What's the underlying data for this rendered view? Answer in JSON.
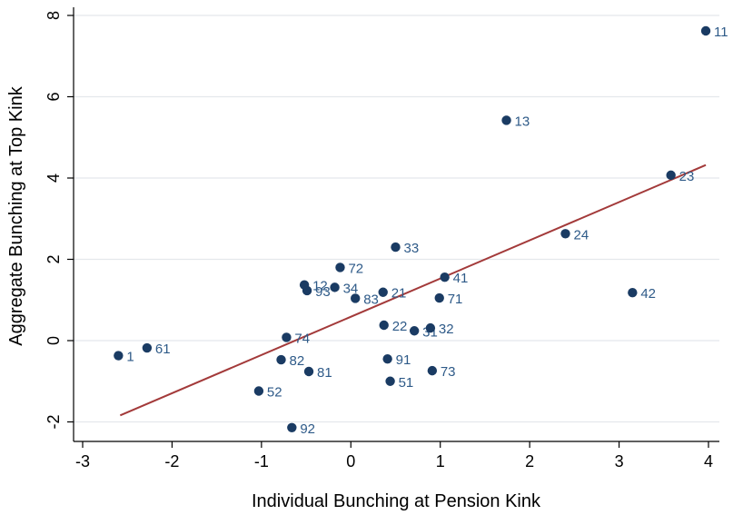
{
  "chart_data": {
    "type": "scatter",
    "xlabel": "Individual Bunching at Pension Kink",
    "ylabel": "Aggregate Bunching at Top Kink",
    "xlim": [
      -3.1,
      4.1
    ],
    "ylim": [
      -2.4,
      8.3
    ],
    "x_ticks": [
      "-3",
      "-2",
      "-1",
      "0",
      "1",
      "2",
      "3",
      "4"
    ],
    "y_ticks": [
      "-2",
      "0",
      "2",
      "4",
      "6",
      "8"
    ],
    "grid": true,
    "legend": "none",
    "colors": {
      "point": "#1a3b63",
      "label": "#2e5a88",
      "fit_line": "#a33a3a",
      "grid": "#e4e8ec"
    },
    "points": [
      {
        "label": "11",
        "x": 3.97,
        "y": 7.62
      },
      {
        "label": "13",
        "x": 1.74,
        "y": 5.42
      },
      {
        "label": "23",
        "x": 3.58,
        "y": 4.07
      },
      {
        "label": "24",
        "x": 2.4,
        "y": 2.63
      },
      {
        "label": "42",
        "x": 3.15,
        "y": 1.18
      },
      {
        "label": "33",
        "x": 0.5,
        "y": 2.3
      },
      {
        "label": "72",
        "x": -0.12,
        "y": 1.8
      },
      {
        "label": "41",
        "x": 1.05,
        "y": 1.56
      },
      {
        "label": "12",
        "x": -0.52,
        "y": 1.37
      },
      {
        "label": "34",
        "x": -0.18,
        "y": 1.31
      },
      {
        "label": "93",
        "x": -0.49,
        "y": 1.23
      },
      {
        "label": "21",
        "x": 0.36,
        "y": 1.19
      },
      {
        "label": "83",
        "x": 0.05,
        "y": 1.04
      },
      {
        "label": "71",
        "x": 0.99,
        "y": 1.05
      },
      {
        "label": "22",
        "x": 0.37,
        "y": 0.38
      },
      {
        "label": "31",
        "x": 0.71,
        "y": 0.24
      },
      {
        "label": "32",
        "x": 0.89,
        "y": 0.31
      },
      {
        "label": "74",
        "x": -0.72,
        "y": 0.08
      },
      {
        "label": "61",
        "x": -2.28,
        "y": -0.18
      },
      {
        "label": "1",
        "x": -2.6,
        "y": -0.37
      },
      {
        "label": "82",
        "x": -0.78,
        "y": -0.47
      },
      {
        "label": "91",
        "x": 0.41,
        "y": -0.45
      },
      {
        "label": "81",
        "x": -0.47,
        "y": -0.76
      },
      {
        "label": "73",
        "x": 0.91,
        "y": -0.74
      },
      {
        "label": "51",
        "x": 0.44,
        "y": -1.0
      },
      {
        "label": "52",
        "x": -1.03,
        "y": -1.24
      },
      {
        "label": "92",
        "x": -0.66,
        "y": -2.14
      }
    ],
    "fit_line": {
      "x": [
        -2.58,
        3.97
      ],
      "y": [
        -1.84,
        4.32
      ]
    }
  }
}
